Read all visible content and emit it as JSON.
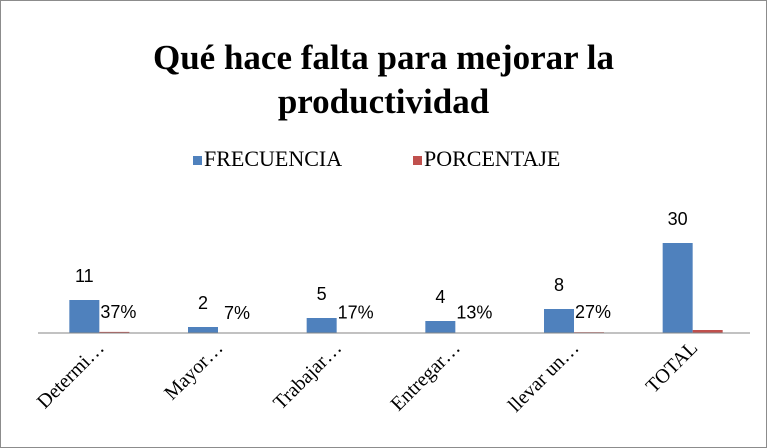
{
  "chart_data": {
    "type": "bar",
    "title": "Qué hace falta para mejorar la productividad",
    "categories": [
      "Determi…",
      "Mayor…",
      "Trabajar…",
      "Entregar…",
      "llevar un…",
      "TOTAL"
    ],
    "series": [
      {
        "name": "FRECUENCIA",
        "color": "#4f81bd",
        "values": [
          11,
          2,
          5,
          4,
          8,
          30
        ]
      },
      {
        "name": "PORCENTAJE",
        "color": "#c0504d",
        "values": [
          0.37,
          0.07,
          0.17,
          0.13,
          0.27,
          1
        ],
        "value_labels": [
          "37%",
          "7%",
          "17%",
          "13%",
          "27%",
          null
        ]
      }
    ],
    "ylim": [
      0,
      30
    ],
    "legend": "top"
  }
}
